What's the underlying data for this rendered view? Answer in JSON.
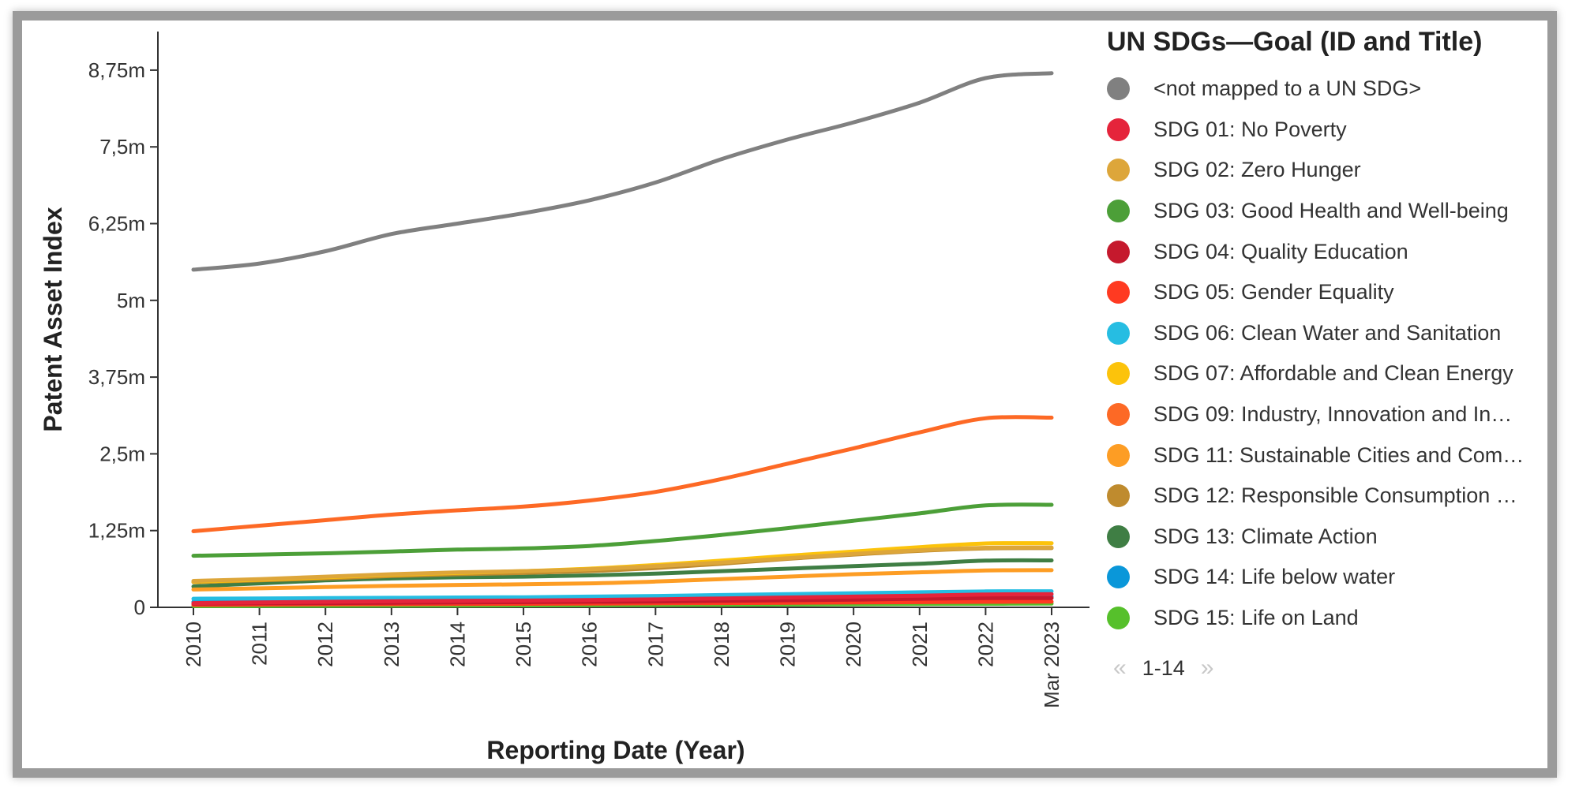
{
  "legend": {
    "title": "UN SDGs—Goal (ID and Title)",
    "items": [
      {
        "label": "<not mapped to a UN SDG>",
        "color": "#808080"
      },
      {
        "label": "SDG 01: No Poverty",
        "color": "#e5243b"
      },
      {
        "label": "SDG 02: Zero Hunger",
        "color": "#dda63a"
      },
      {
        "label": "SDG 03: Good Health and Well-being",
        "color": "#4c9f38"
      },
      {
        "label": "SDG 04: Quality Education",
        "color": "#c5192d"
      },
      {
        "label": "SDG 05: Gender Equality",
        "color": "#ff3a21"
      },
      {
        "label": "SDG 06: Clean Water and Sanitation",
        "color": "#26bde2"
      },
      {
        "label": "SDG 07: Affordable and Clean Energy",
        "color": "#fcc30b"
      },
      {
        "label": "SDG 09: Industry, Innovation and In…",
        "color": "#fd6925"
      },
      {
        "label": "SDG 11: Sustainable Cities and Com…",
        "color": "#fd9d24"
      },
      {
        "label": "SDG 12: Responsible Consumption …",
        "color": "#bf8b2e"
      },
      {
        "label": "SDG 13: Climate Action",
        "color": "#3f7e44"
      },
      {
        "label": "SDG 14: Life below water",
        "color": "#0a97d9"
      },
      {
        "label": "SDG 15: Life on Land",
        "color": "#56c02b"
      }
    ]
  },
  "pager": {
    "prev_icon": "«",
    "range": "1-14",
    "next_icon": "»"
  },
  "chart_data": {
    "type": "line",
    "xlabel": "Reporting Date (Year)",
    "ylabel": "Patent Asset Index",
    "x": [
      "2010",
      "2011",
      "2012",
      "2013",
      "2014",
      "2015",
      "2016",
      "2017",
      "2018",
      "2019",
      "2020",
      "2021",
      "2022",
      "Mar 2023"
    ],
    "ylim": [
      0,
      9250000
    ],
    "yticks": [
      0,
      1250000,
      2500000,
      3750000,
      5000000,
      6250000,
      7500000,
      8750000
    ],
    "ytick_labels": [
      "0",
      "1,25m",
      "2,5m",
      "3,75m",
      "5m",
      "6,25m",
      "7,5m",
      "8,75m"
    ],
    "legend_position": "right",
    "series": [
      {
        "name": "<not mapped to a UN SDG>",
        "color": "#808080",
        "values": [
          5500000,
          5600000,
          5800000,
          6080000,
          6250000,
          6420000,
          6630000,
          6920000,
          7300000,
          7620000,
          7900000,
          8220000,
          8620000,
          8700000
        ]
      },
      {
        "name": "SDG 01: No Poverty",
        "color": "#e5243b",
        "values": [
          70000,
          80000,
          90000,
          100000,
          105000,
          110000,
          120000,
          130000,
          145000,
          160000,
          175000,
          190000,
          210000,
          215000
        ]
      },
      {
        "name": "SDG 02: Zero Hunger",
        "color": "#dda63a",
        "values": [
          430000,
          460000,
          500000,
          540000,
          570000,
          590000,
          620000,
          670000,
          730000,
          800000,
          870000,
          930000,
          970000,
          975000
        ]
      },
      {
        "name": "SDG 03: Good Health and Well-being",
        "color": "#4c9f38",
        "values": [
          840000,
          860000,
          880000,
          910000,
          940000,
          960000,
          1000000,
          1080000,
          1180000,
          1290000,
          1410000,
          1530000,
          1660000,
          1670000
        ]
      },
      {
        "name": "SDG 04: Quality Education",
        "color": "#c5192d",
        "values": [
          60000,
          65000,
          70000,
          75000,
          80000,
          85000,
          90000,
          95000,
          105000,
          115000,
          125000,
          140000,
          150000,
          152000
        ]
      },
      {
        "name": "SDG 05: Gender Equality",
        "color": "#ff3a21",
        "values": [
          40000,
          45000,
          50000,
          52000,
          55000,
          58000,
          60000,
          65000,
          70000,
          75000,
          80000,
          85000,
          90000,
          92000
        ]
      },
      {
        "name": "SDG 06: Clean Water and Sanitation",
        "color": "#26bde2",
        "values": [
          140000,
          145000,
          150000,
          155000,
          160000,
          165000,
          175000,
          185000,
          200000,
          215000,
          230000,
          245000,
          260000,
          262000
        ]
      },
      {
        "name": "SDG 07: Affordable and Clean Energy",
        "color": "#fcc30b",
        "values": [
          420000,
          450000,
          490000,
          530000,
          560000,
          590000,
          630000,
          690000,
          760000,
          840000,
          910000,
          980000,
          1040000,
          1045000
        ]
      },
      {
        "name": "SDG 09: Industry, Innovation and In…",
        "color": "#fd6925",
        "values": [
          1240000,
          1330000,
          1420000,
          1510000,
          1580000,
          1640000,
          1740000,
          1880000,
          2090000,
          2340000,
          2590000,
          2850000,
          3080000,
          3090000
        ]
      },
      {
        "name": "SDG 11: Sustainable Cities and Com…",
        "color": "#fd9d24",
        "values": [
          290000,
          310000,
          330000,
          350000,
          365000,
          375000,
          390000,
          420000,
          460000,
          500000,
          540000,
          570000,
          600000,
          605000
        ]
      },
      {
        "name": "SDG 12: Responsible Consumption …",
        "color": "#bf8b2e",
        "values": [
          410000,
          440000,
          470000,
          510000,
          540000,
          560000,
          590000,
          640000,
          710000,
          790000,
          860000,
          920000,
          960000,
          965000
        ]
      },
      {
        "name": "SDG 13: Climate Action",
        "color": "#3f7e44",
        "values": [
          340000,
          390000,
          440000,
          470000,
          490000,
          500000,
          520000,
          550000,
          590000,
          630000,
          670000,
          710000,
          760000,
          765000
        ]
      },
      {
        "name": "SDG 14: Life below water",
        "color": "#0a97d9",
        "values": [
          90000,
          95000,
          100000,
          105000,
          110000,
          115000,
          120000,
          125000,
          135000,
          145000,
          155000,
          165000,
          175000,
          176000
        ]
      },
      {
        "name": "SDG 15: Life on Land",
        "color": "#56c02b",
        "values": [
          20000,
          22000,
          25000,
          27000,
          30000,
          32000,
          35000,
          38000,
          42000,
          46000,
          50000,
          54000,
          58000,
          60000
        ]
      }
    ]
  }
}
